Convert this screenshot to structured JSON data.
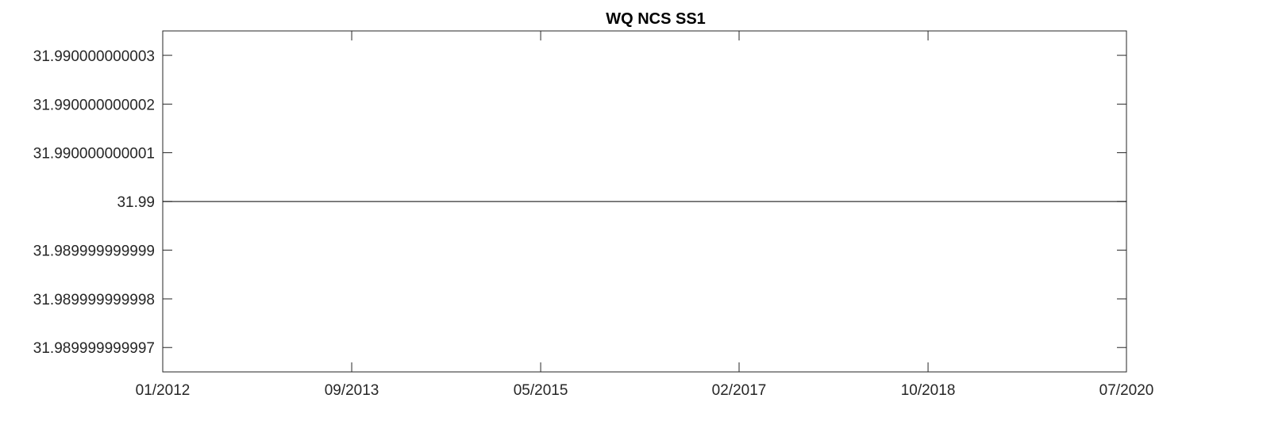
{
  "chart_data": {
    "type": "line",
    "title": "WQ NCS SS1",
    "xlabel": "",
    "ylabel": "",
    "x_ticks": [
      "01/2012",
      "09/2013",
      "05/2015",
      "02/2017",
      "10/2018",
      "07/2020"
    ],
    "y_ticks": [
      "31.989999999997",
      "31.989999999998",
      "31.989999999999",
      "31.99",
      "31.990000000001",
      "31.990000000002",
      "31.990000000003"
    ],
    "xlim": [
      "01/2012",
      "07/2020"
    ],
    "ylim": [
      31.9899999999965,
      31.9900000000035
    ],
    "grid": false,
    "series": [
      {
        "x": [
          "01/2012",
          "07/2020"
        ],
        "y": [
          31.99,
          31.99
        ],
        "color": "#000000"
      }
    ]
  }
}
